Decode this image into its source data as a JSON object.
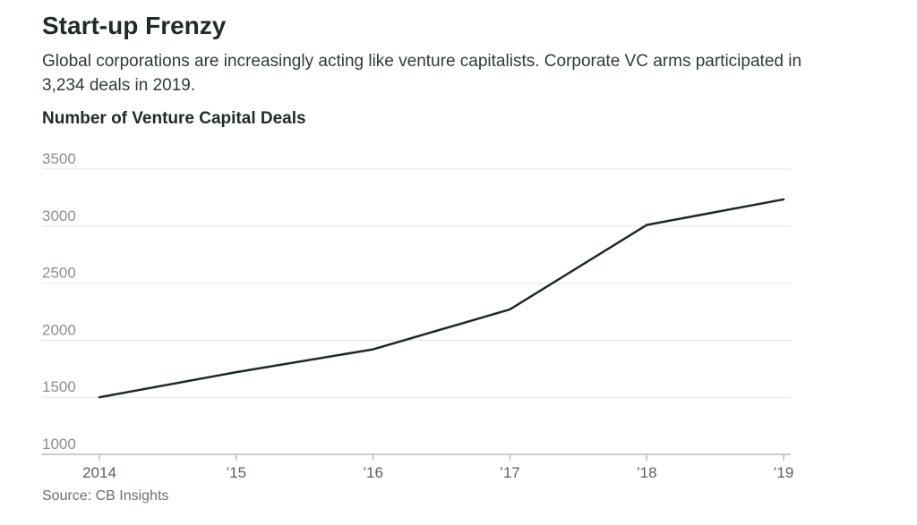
{
  "header": {
    "title": "Start-up Frenzy",
    "subtitle": "Global corporations are increasingly acting like venture capitalists. Corporate VC arms participated in 3,234 deals in 2019."
  },
  "footer": {
    "source": "Source: CB Insights"
  },
  "colors": {
    "line": "#1a2a26",
    "grid": "#e2e4e4",
    "axis": "#b8bcbc"
  },
  "chart_data": {
    "type": "line",
    "title": "Number of Venture Capital Deals",
    "xlabel": "",
    "ylabel": "",
    "categories": [
      "2014",
      "’15",
      "’16",
      "’17",
      "’18",
      "’19"
    ],
    "series": [
      {
        "values": [
          1500,
          1720,
          1920,
          2270,
          3010,
          3234
        ]
      }
    ],
    "ylim": [
      1000,
      3500
    ],
    "yticks": [
      1000,
      1500,
      2000,
      2500,
      3000,
      3500
    ],
    "grid": true,
    "legend": "none"
  }
}
